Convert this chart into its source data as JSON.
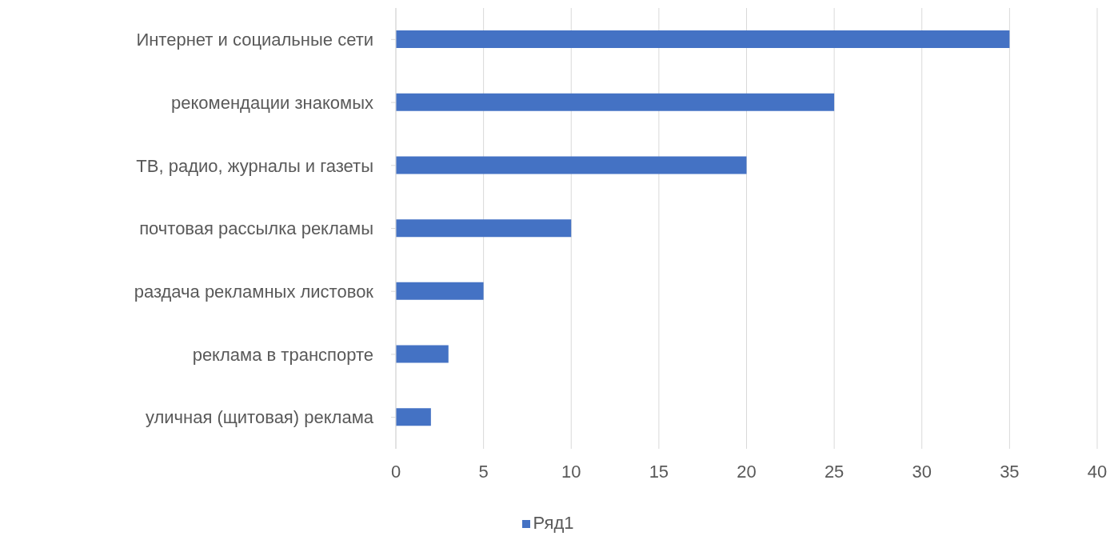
{
  "chart_data": {
    "type": "bar",
    "orientation": "horizontal",
    "categories": [
      "Интернет и социальные сети",
      "рекомендации знакомых",
      "ТВ, радио, журналы и газеты",
      "почтовая рассылка рекламы",
      "раздача рекламных листовок",
      "реклама в транспорте",
      "уличная (щитовая) реклама"
    ],
    "series": [
      {
        "name": "Ряд1",
        "color": "#4472c4",
        "values": [
          35,
          25,
          20,
          10,
          5,
          3,
          2
        ]
      }
    ],
    "xlim": [
      0,
      40
    ],
    "xticks": [
      0,
      5,
      10,
      15,
      20,
      25,
      30,
      35,
      40
    ],
    "grid": "x",
    "legend": "bottom"
  }
}
